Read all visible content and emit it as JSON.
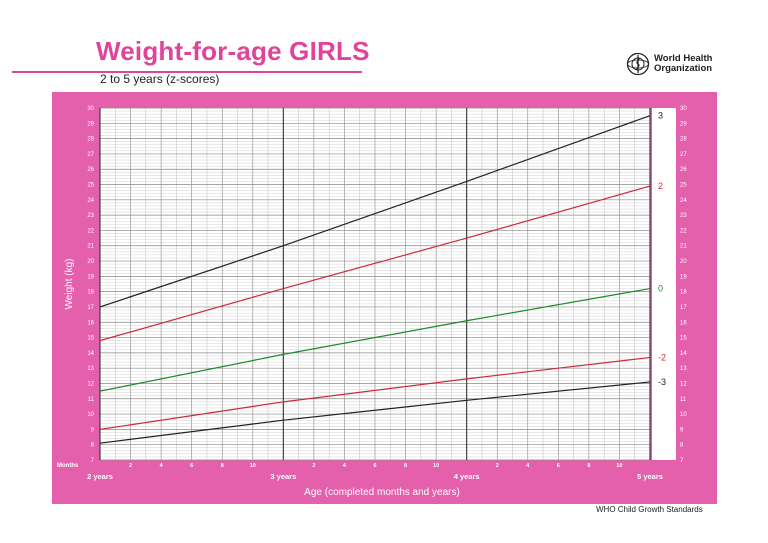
{
  "header": {
    "title": "Weight-for-age GIRLS",
    "subtitle": "2 to 5 years (z-scores)",
    "org_line1": "World Health",
    "org_line2": "Organization",
    "footer": "WHO Child Growth Standards"
  },
  "colors": {
    "accent": "#e0449a",
    "frame": "#e45fac",
    "line_3": "#222222",
    "line_2": "#cc2a3a",
    "line_0": "#1f8a2c"
  },
  "icons": [
    "who-emblem-icon"
  ],
  "chart_data": {
    "type": "line",
    "title": "Weight-for-age GIRLS",
    "subtitle": "2 to 5 years (z-scores)",
    "xlabel": "Age (completed months and years)",
    "ylabel": "Weight (kg)",
    "x_unit_label": "Months",
    "xlim": [
      24,
      60
    ],
    "ylim": [
      7,
      30
    ],
    "x_year_ticks": [
      {
        "month": 24,
        "label": "2 years"
      },
      {
        "month": 36,
        "label": "3 years"
      },
      {
        "month": 48,
        "label": "4 years"
      },
      {
        "month": 60,
        "label": "5 years"
      }
    ],
    "x_month_ticks": [
      {
        "month": 26,
        "label": "2"
      },
      {
        "month": 28,
        "label": "4"
      },
      {
        "month": 30,
        "label": "6"
      },
      {
        "month": 32,
        "label": "8"
      },
      {
        "month": 34,
        "label": "10"
      },
      {
        "month": 38,
        "label": "2"
      },
      {
        "month": 40,
        "label": "4"
      },
      {
        "month": 42,
        "label": "6"
      },
      {
        "month": 44,
        "label": "8"
      },
      {
        "month": 46,
        "label": "10"
      },
      {
        "month": 50,
        "label": "2"
      },
      {
        "month": 52,
        "label": "4"
      },
      {
        "month": 54,
        "label": "6"
      },
      {
        "month": 56,
        "label": "8"
      },
      {
        "month": 58,
        "label": "10"
      }
    ],
    "y_ticks": [
      "7",
      "8",
      "9",
      "10",
      "11",
      "12",
      "13",
      "14",
      "15",
      "16",
      "17",
      "18",
      "19",
      "20",
      "21",
      "22",
      "23",
      "24",
      "25",
      "26",
      "27",
      "28",
      "29",
      "30"
    ],
    "grid": true,
    "series": [
      {
        "name": "3",
        "color": "#222222",
        "x": [
          24,
          36,
          48,
          60
        ],
        "values": [
          17.0,
          21.0,
          25.2,
          29.5
        ]
      },
      {
        "name": "2",
        "color": "#cc2a3a",
        "x": [
          24,
          36,
          48,
          60
        ],
        "values": [
          14.8,
          18.2,
          21.5,
          24.9
        ]
      },
      {
        "name": "0",
        "color": "#1f8a2c",
        "x": [
          24,
          36,
          48,
          60
        ],
        "values": [
          11.5,
          13.9,
          16.1,
          18.2
        ]
      },
      {
        "name": "-2",
        "color": "#cc2a3a",
        "x": [
          24,
          36,
          48,
          60
        ],
        "values": [
          9.0,
          10.8,
          12.3,
          13.7
        ]
      },
      {
        "name": "-3",
        "color": "#222222",
        "x": [
          24,
          36,
          48,
          60
        ],
        "values": [
          8.1,
          9.6,
          10.9,
          12.1
        ]
      }
    ]
  }
}
